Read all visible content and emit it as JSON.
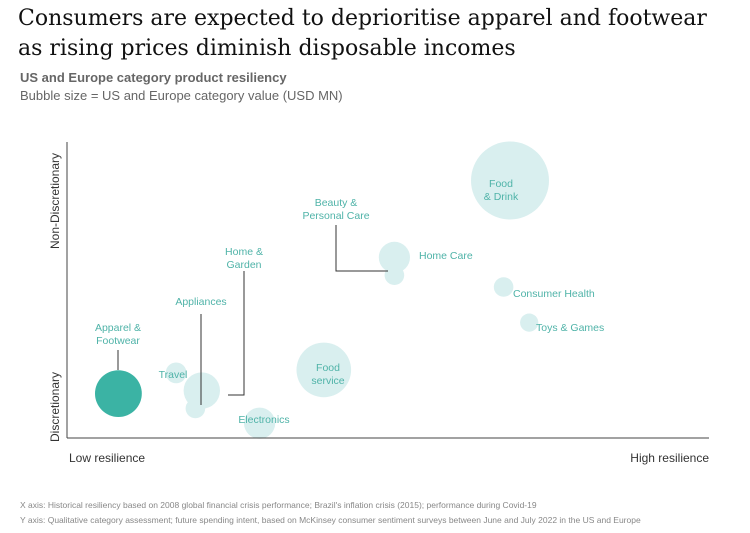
{
  "header": {
    "title": "Consumers are expected to deprioritise apparel and footwear as rising prices diminish disposable incomes",
    "subtitle": "US and Europe category product resiliency",
    "subtitle2": "Bubble size = US and Europe category value (USD MN)"
  },
  "footnotes": {
    "x_axis": "X axis: Historical resiliency based on 2008 global financial crisis performance; Brazil's inflation crisis (2015); performance during Covid-19",
    "y_axis": "Y axis: Qualitative category assessment; future spending intent, based on McKinsey consumer sentiment surveys between June and July 2022 in the US and Europe"
  },
  "colors": {
    "bubble": "#d9efef",
    "highlight": "#3bb3a4",
    "label": "#4fb3a8",
    "axis": "#444444",
    "leader": "#333333"
  },
  "chart_data": {
    "type": "scatter",
    "encoding": "bubble",
    "x_axis": {
      "low_label": "Low resilience",
      "high_label": "High resilience"
    },
    "y_axis": {
      "low_label": "Discretionary",
      "high_label": "Non-Discretionary"
    },
    "xlim": [
      0,
      100
    ],
    "ylim": [
      0,
      100
    ],
    "points": [
      {
        "id": "apparel",
        "label": "Apparel & Footwear",
        "label_lines": [
          "Apparel &",
          "Footwear"
        ],
        "x": 8,
        "y": 15,
        "size": 36,
        "highlight": true
      },
      {
        "id": "travel",
        "label": "Travel",
        "label_lines": [
          "Travel"
        ],
        "x": 17,
        "y": 22,
        "size": 16,
        "highlight": false
      },
      {
        "id": "appliances",
        "label": "Appliances",
        "label_lines": [
          "Appliances"
        ],
        "x": 20,
        "y": 10,
        "size": 15,
        "highlight": false
      },
      {
        "id": "home-garden",
        "label": "Home & Garden",
        "label_lines": [
          "Home &",
          "Garden"
        ],
        "x": 21,
        "y": 16,
        "size": 28,
        "highlight": false
      },
      {
        "id": "electronics",
        "label": "Electronics",
        "label_lines": [
          "Electronics"
        ],
        "x": 30,
        "y": 5,
        "size": 24,
        "highlight": false
      },
      {
        "id": "food-service",
        "label": "Food service",
        "label_lines": [
          "Food",
          "service"
        ],
        "x": 40,
        "y": 23,
        "size": 42,
        "highlight": false
      },
      {
        "id": "home-care",
        "label": "Home Care",
        "label_lines": [
          "Home Care"
        ],
        "x": 51,
        "y": 61,
        "size": 24,
        "highlight": false
      },
      {
        "id": "beauty",
        "label": "Beauty & Personal Care",
        "label_lines": [
          "Beauty &",
          "Personal Care"
        ],
        "x": 51,
        "y": 55,
        "size": 15,
        "highlight": false
      },
      {
        "id": "food-drink",
        "label": "Food & Drink",
        "label_lines": [
          "Food",
          "& Drink"
        ],
        "x": 69,
        "y": 87,
        "size": 60,
        "highlight": false
      },
      {
        "id": "consumer-health",
        "label": "Consumer Health",
        "label_lines": [
          "Consumer Health"
        ],
        "x": 68,
        "y": 51,
        "size": 15,
        "highlight": false
      },
      {
        "id": "toys-games",
        "label": "Toys & Games",
        "label_lines": [
          "Toys & Games"
        ],
        "x": 72,
        "y": 39,
        "size": 14,
        "highlight": false
      }
    ]
  }
}
